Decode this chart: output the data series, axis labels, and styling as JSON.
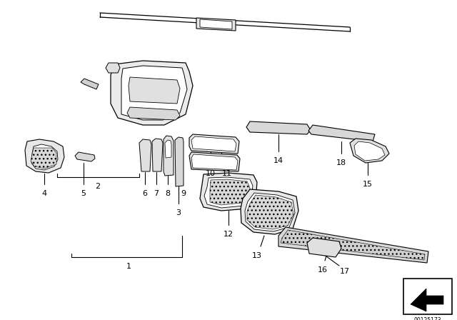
{
  "bg_color": "#ffffff",
  "fig_width": 6.4,
  "fig_height": 4.48,
  "dpi": 100,
  "stamp_text": "00125173",
  "line_color": "#000000",
  "lw": 0.7
}
